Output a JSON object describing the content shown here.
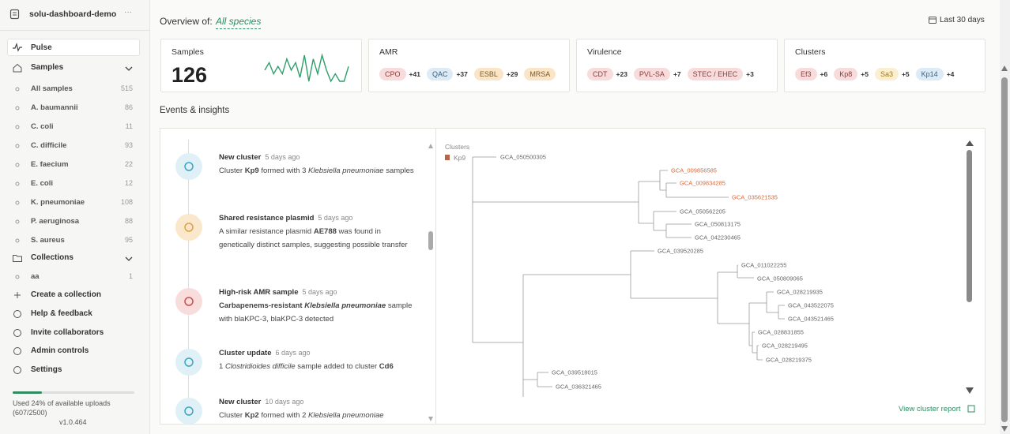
{
  "sidebar": {
    "workspace": "solu-dashboard-demo",
    "pulse": "Pulse",
    "samples": {
      "label": "Samples",
      "items": [
        {
          "name": "All samples",
          "count": 515
        },
        {
          "name": "A. baumannii",
          "count": 86
        },
        {
          "name": "C. coli",
          "count": 11
        },
        {
          "name": "C. difficile",
          "count": 93
        },
        {
          "name": "E. faecium",
          "count": 22
        },
        {
          "name": "E. coli",
          "count": 12
        },
        {
          "name": "K. pneumoniae",
          "count": 108
        },
        {
          "name": "P. aeruginosa",
          "count": 88
        },
        {
          "name": "S. aureus",
          "count": 95
        }
      ]
    },
    "collections": {
      "label": "Collections",
      "items": [
        {
          "name": "aa",
          "count": 1
        }
      ]
    },
    "actions": [
      "Create a collection",
      "Help & feedback",
      "Invite collaborators",
      "Admin controls",
      "Settings"
    ],
    "usage": {
      "percent": 24,
      "text": "Used 24% of available uploads",
      "detail": "(607/2500)"
    },
    "version": "v1.0.464"
  },
  "overview": {
    "label": "Overview of:",
    "scope": "All species",
    "range": "Last 30 days"
  },
  "cards": [
    {
      "title": "Samples",
      "value": 126,
      "trend": [
        6,
        8,
        5,
        7,
        5,
        9,
        6,
        8,
        4,
        10,
        3,
        9,
        5,
        10,
        6,
        3,
        5,
        3,
        3,
        7
      ]
    },
    {
      "title": "AMR",
      "tags": [
        {
          "name": "CPO",
          "change": "+41",
          "tone": "red"
        },
        {
          "name": "QAC",
          "change": "+37",
          "tone": "blue"
        },
        {
          "name": "ESBL",
          "change": "+29",
          "tone": "orange"
        },
        {
          "name": "MRSA",
          "tone": "orange"
        }
      ]
    },
    {
      "title": "Virulence",
      "tags": [
        {
          "name": "CDT",
          "change": "+23",
          "tone": "red"
        },
        {
          "name": "PVL-SA",
          "change": "+7",
          "tone": "red"
        },
        {
          "name": "STEC / EHEC",
          "change": "+3",
          "tone": "red"
        }
      ]
    },
    {
      "title": "Clusters",
      "tags": [
        {
          "name": "Ef3",
          "change": "+6",
          "tone": "red"
        },
        {
          "name": "Kp8",
          "change": "+5",
          "tone": "red"
        },
        {
          "name": "Sa3",
          "change": "+5",
          "tone": "yellow"
        },
        {
          "name": "Kp14",
          "change": "+4",
          "tone": "blue"
        }
      ]
    }
  ],
  "events": {
    "title": "Events & insights",
    "items": [
      {
        "kind": "cluster",
        "title": "New cluster",
        "time": "5 days ago",
        "description": [
          {
            "text": "Cluster "
          },
          {
            "text": "Kp9",
            "bold": true
          },
          {
            "text": " formed with 3 "
          },
          {
            "text": "Klebsiella pneumoniae",
            "italic": true
          },
          {
            "text": " samples"
          }
        ]
      },
      {
        "kind": "plasmid",
        "title": "Shared resistance plasmid",
        "time": "5 days ago",
        "description": [
          {
            "text": "A similar resistance plasmid "
          },
          {
            "text": "AE788",
            "bold": true
          },
          {
            "text": " was found in genetically distinct samples, suggesting possible transfer"
          }
        ]
      },
      {
        "kind": "amr",
        "title": "High-risk AMR sample",
        "time": "5 days ago",
        "description": [
          {
            "text": "Carbapenems-resistant ",
            "bold": true
          },
          {
            "text": "Klebsiella pneumoniae",
            "bold": true,
            "italic": true
          },
          {
            "text": " sample with blaKPC-3, blaKPC-3 detected"
          }
        ]
      },
      {
        "kind": "cluster",
        "title": "Cluster update",
        "time": "6 days ago",
        "description": [
          {
            "text": "1 "
          },
          {
            "text": "Clostridioides difficile",
            "italic": true
          },
          {
            "text": " sample added to cluster "
          },
          {
            "text": "Cd6",
            "bold": true
          }
        ]
      },
      {
        "kind": "cluster",
        "title": "New cluster",
        "time": "10 days ago",
        "description": [
          {
            "text": "Cluster "
          },
          {
            "text": "Kp2",
            "bold": true
          },
          {
            "text": " formed with 2 "
          },
          {
            "text": "Klebsiella pneumoniae",
            "italic": true
          }
        ]
      }
    ]
  },
  "tree": {
    "title": "Clusters",
    "legend": "Kp9",
    "link": "View cluster report",
    "leaves": [
      {
        "label": "GCA_050500305"
      },
      {
        "label": "GCA_009856585",
        "highlight": true
      },
      {
        "label": "GCA_009834285",
        "highlight": true
      },
      {
        "label": "GCA_035621535",
        "highlight": true
      },
      {
        "label": "GCA_050562205"
      },
      {
        "label": "GCA_050813175"
      },
      {
        "label": "GCA_042230465"
      },
      {
        "label": "GCA_039520285"
      },
      {
        "label": "GCA_011022255"
      },
      {
        "label": "GCA_050809065"
      },
      {
        "label": "GCA_028219935"
      },
      {
        "label": "GCA_043522075"
      },
      {
        "label": "GCA_043521465"
      },
      {
        "label": "GCA_028831855"
      },
      {
        "label": "GCA_028219495"
      },
      {
        "label": "GCA_028219375"
      },
      {
        "label": "GCA_039518015"
      },
      {
        "label": "GCA_036321465"
      }
    ]
  }
}
